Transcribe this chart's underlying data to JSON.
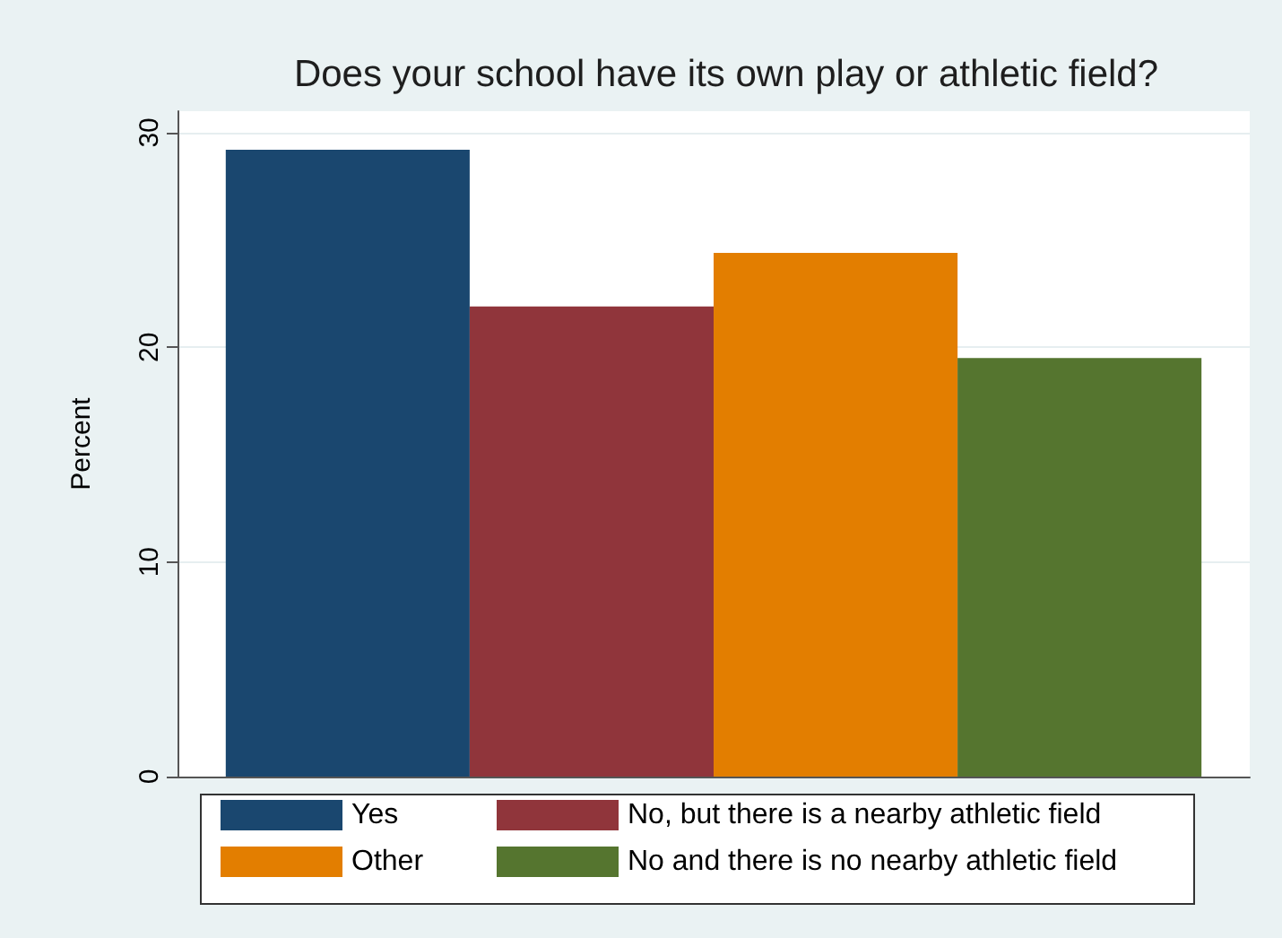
{
  "chart_data": {
    "type": "bar",
    "title": "Does your school have its own play or athletic field?",
    "ylabel": "Percent",
    "categories": [
      null
    ],
    "series": [
      {
        "name": "Yes",
        "color": "#1a476f",
        "values": [
          29.2
        ]
      },
      {
        "name": "No, but there is a nearby athletic field",
        "color": "#90353b",
        "values": [
          21.9
        ]
      },
      {
        "name": "Other",
        "color": "#e37e00",
        "values": [
          24.4
        ]
      },
      {
        "name": "No and there is no nearby athletic field",
        "color": "#55752f",
        "values": [
          19.5
        ]
      }
    ],
    "ylim": [
      0,
      31
    ],
    "yticks": [
      0,
      10,
      20,
      30
    ],
    "grid": "y",
    "legend": "bottom"
  }
}
